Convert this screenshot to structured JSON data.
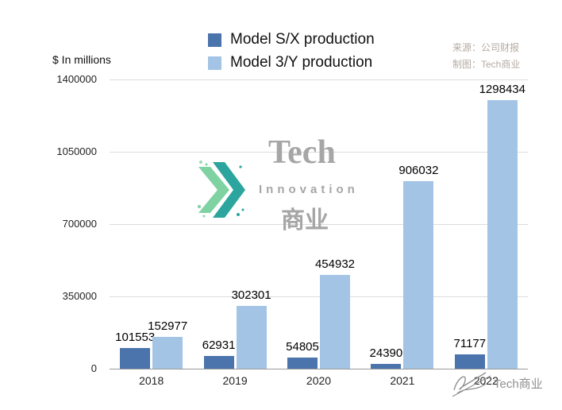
{
  "chart_data": {
    "type": "bar",
    "categories": [
      "2018",
      "2019",
      "2020",
      "2021",
      "2022"
    ],
    "series": [
      {
        "name": "Model S/X production",
        "color": "#4a74ab",
        "values": [
          101553,
          62931,
          54805,
          24390,
          71177
        ]
      },
      {
        "name": "Model 3/Y production",
        "color": "#a4c4e6",
        "values": [
          152977,
          302301,
          454932,
          906032,
          1298434
        ]
      }
    ],
    "title": "",
    "xlabel": "",
    "ylabel": "$ In millions",
    "ylim": [
      0,
      1400000
    ],
    "yticks": [
      0,
      350000,
      700000,
      1050000,
      1400000
    ],
    "grid": true,
    "legend_position": "top-center"
  },
  "source": {
    "line1": "来源：公司财报",
    "line2": "制图：Tech商业"
  },
  "watermark": {
    "title": "Tech",
    "subtitle": "Innovation",
    "cjk": "商业",
    "logo_colors": {
      "light": "#7fd2a2",
      "dark": "#2ba59d"
    }
  },
  "footer": {
    "label": "Tech商业"
  }
}
